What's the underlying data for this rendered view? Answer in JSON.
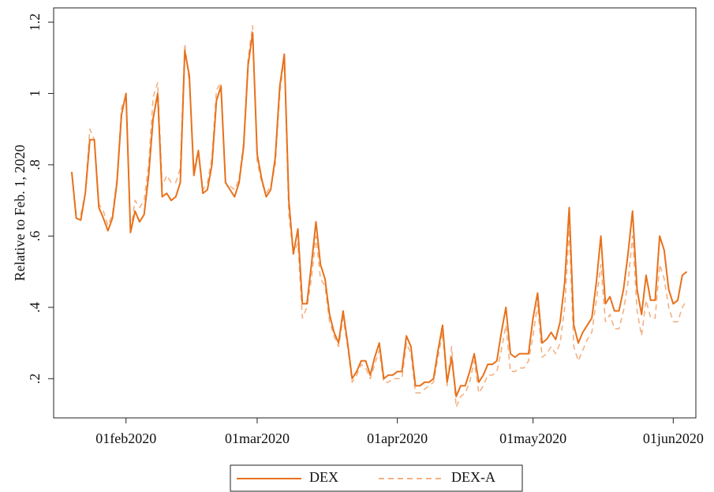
{
  "chart_data": {
    "type": "line",
    "y_label": "Relative to Feb. 1, 2020",
    "x": [
      "2020-01-20",
      "2020-01-21",
      "2020-01-22",
      "2020-01-23",
      "2020-01-24",
      "2020-01-25",
      "2020-01-26",
      "2020-01-27",
      "2020-01-28",
      "2020-01-29",
      "2020-01-30",
      "2020-01-31",
      "2020-02-01",
      "2020-02-02",
      "2020-02-03",
      "2020-02-04",
      "2020-02-05",
      "2020-02-06",
      "2020-02-07",
      "2020-02-08",
      "2020-02-09",
      "2020-02-10",
      "2020-02-11",
      "2020-02-12",
      "2020-02-13",
      "2020-02-14",
      "2020-02-15",
      "2020-02-16",
      "2020-02-17",
      "2020-02-18",
      "2020-02-19",
      "2020-02-20",
      "2020-02-21",
      "2020-02-22",
      "2020-02-23",
      "2020-02-24",
      "2020-02-25",
      "2020-02-26",
      "2020-02-27",
      "2020-02-28",
      "2020-02-29",
      "2020-03-01",
      "2020-03-02",
      "2020-03-03",
      "2020-03-04",
      "2020-03-05",
      "2020-03-06",
      "2020-03-07",
      "2020-03-08",
      "2020-03-09",
      "2020-03-10",
      "2020-03-11",
      "2020-03-12",
      "2020-03-13",
      "2020-03-14",
      "2020-03-15",
      "2020-03-16",
      "2020-03-17",
      "2020-03-18",
      "2020-03-19",
      "2020-03-20",
      "2020-03-21",
      "2020-03-22",
      "2020-03-23",
      "2020-03-24",
      "2020-03-25",
      "2020-03-26",
      "2020-03-27",
      "2020-03-28",
      "2020-03-29",
      "2020-03-30",
      "2020-03-31",
      "2020-04-01",
      "2020-04-02",
      "2020-04-03",
      "2020-04-04",
      "2020-04-05",
      "2020-04-06",
      "2020-04-07",
      "2020-04-08",
      "2020-04-09",
      "2020-04-10",
      "2020-04-11",
      "2020-04-12",
      "2020-04-13",
      "2020-04-14",
      "2020-04-15",
      "2020-04-16",
      "2020-04-17",
      "2020-04-18",
      "2020-04-19",
      "2020-04-20",
      "2020-04-21",
      "2020-04-22",
      "2020-04-23",
      "2020-04-24",
      "2020-04-25",
      "2020-04-26",
      "2020-04-27",
      "2020-04-28",
      "2020-04-29",
      "2020-04-30",
      "2020-05-01",
      "2020-05-02",
      "2020-05-03",
      "2020-05-04",
      "2020-05-05",
      "2020-05-06",
      "2020-05-07",
      "2020-05-08",
      "2020-05-09",
      "2020-05-10",
      "2020-05-11",
      "2020-05-12",
      "2020-05-13",
      "2020-05-14",
      "2020-05-15",
      "2020-05-16",
      "2020-05-17",
      "2020-05-18",
      "2020-05-19",
      "2020-05-20",
      "2020-05-21",
      "2020-05-22",
      "2020-05-23",
      "2020-05-24",
      "2020-05-25",
      "2020-05-26",
      "2020-05-27",
      "2020-05-28",
      "2020-05-29",
      "2020-05-30",
      "2020-05-31",
      "2020-06-01",
      "2020-06-02",
      "2020-06-03",
      "2020-06-04"
    ],
    "series": [
      {
        "name": "DEX",
        "color": "#e8711a",
        "dash": false,
        "values": [
          0.78,
          0.65,
          0.645,
          0.72,
          0.87,
          0.87,
          0.68,
          0.65,
          0.615,
          0.65,
          0.75,
          0.94,
          1.0,
          0.61,
          0.67,
          0.64,
          0.66,
          0.77,
          0.93,
          1.0,
          0.71,
          0.72,
          0.7,
          0.71,
          0.75,
          1.12,
          1.05,
          0.77,
          0.84,
          0.72,
          0.73,
          0.8,
          0.98,
          1.02,
          0.75,
          0.73,
          0.71,
          0.75,
          0.85,
          1.08,
          1.17,
          0.83,
          0.76,
          0.71,
          0.73,
          0.82,
          1.02,
          1.11,
          0.7,
          0.55,
          0.62,
          0.41,
          0.41,
          0.52,
          0.64,
          0.52,
          0.48,
          0.38,
          0.33,
          0.3,
          0.39,
          0.3,
          0.2,
          0.22,
          0.25,
          0.25,
          0.21,
          0.26,
          0.3,
          0.2,
          0.21,
          0.21,
          0.22,
          0.22,
          0.32,
          0.29,
          0.18,
          0.18,
          0.19,
          0.19,
          0.2,
          0.28,
          0.35,
          0.19,
          0.26,
          0.15,
          0.18,
          0.18,
          0.22,
          0.27,
          0.19,
          0.21,
          0.24,
          0.24,
          0.25,
          0.33,
          0.4,
          0.27,
          0.26,
          0.27,
          0.27,
          0.27,
          0.37,
          0.44,
          0.3,
          0.31,
          0.33,
          0.31,
          0.36,
          0.47,
          0.68,
          0.35,
          0.3,
          0.33,
          0.35,
          0.37,
          0.47,
          0.6,
          0.41,
          0.43,
          0.39,
          0.39,
          0.45,
          0.55,
          0.67,
          0.45,
          0.38,
          0.49,
          0.42,
          0.42,
          0.6,
          0.56,
          0.45,
          0.41,
          0.42,
          0.49,
          0.5
        ]
      },
      {
        "name": "DEX-A",
        "color": "#f4b183",
        "dash": true,
        "values": [
          0.78,
          0.66,
          0.66,
          0.72,
          0.9,
          0.87,
          0.69,
          0.67,
          0.63,
          0.66,
          0.76,
          0.96,
          0.99,
          0.61,
          0.7,
          0.68,
          0.7,
          0.8,
          0.99,
          1.03,
          0.74,
          0.77,
          0.75,
          0.75,
          0.79,
          1.14,
          1.03,
          0.79,
          0.84,
          0.73,
          0.75,
          0.82,
          1.01,
          1.03,
          0.75,
          0.74,
          0.73,
          0.76,
          0.86,
          1.1,
          1.19,
          0.81,
          0.75,
          0.72,
          0.74,
          0.8,
          1.0,
          1.1,
          0.66,
          0.55,
          0.58,
          0.37,
          0.4,
          0.48,
          0.6,
          0.48,
          0.46,
          0.36,
          0.32,
          0.29,
          0.37,
          0.29,
          0.19,
          0.21,
          0.24,
          0.23,
          0.2,
          0.24,
          0.28,
          0.19,
          0.19,
          0.2,
          0.2,
          0.2,
          0.3,
          0.27,
          0.16,
          0.16,
          0.17,
          0.18,
          0.19,
          0.26,
          0.33,
          0.18,
          0.29,
          0.12,
          0.15,
          0.16,
          0.19,
          0.25,
          0.16,
          0.18,
          0.21,
          0.21,
          0.22,
          0.28,
          0.35,
          0.22,
          0.22,
          0.23,
          0.23,
          0.25,
          0.32,
          0.41,
          0.26,
          0.27,
          0.29,
          0.27,
          0.3,
          0.4,
          0.62,
          0.29,
          0.25,
          0.28,
          0.31,
          0.33,
          0.42,
          0.52,
          0.36,
          0.38,
          0.34,
          0.34,
          0.39,
          0.47,
          0.6,
          0.39,
          0.32,
          0.42,
          0.37,
          0.37,
          0.52,
          0.48,
          0.4,
          0.36,
          0.36,
          0.4,
          0.42
        ]
      }
    ],
    "xlim": [
      "2020-01-16",
      "2020-06-06"
    ],
    "xticks": [
      {
        "value": "2020-02-01",
        "label": "01feb2020"
      },
      {
        "value": "2020-03-01",
        "label": "01mar2020"
      },
      {
        "value": "2020-04-01",
        "label": "01apr2020"
      },
      {
        "value": "2020-05-01",
        "label": "01may2020"
      },
      {
        "value": "2020-06-01",
        "label": "01jun2020"
      }
    ],
    "ylim": [
      0.09,
      1.24
    ],
    "yticks": [
      {
        "value": 0.2,
        "label": ".2"
      },
      {
        "value": 0.4,
        "label": ".4"
      },
      {
        "value": 0.6,
        "label": ".6"
      },
      {
        "value": 0.8,
        "label": ".8"
      },
      1,
      1.2
    ],
    "grid": false,
    "legend": "bottom"
  }
}
